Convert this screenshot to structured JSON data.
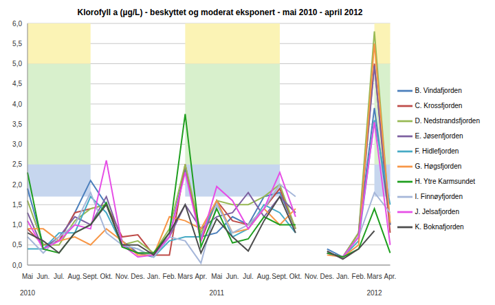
{
  "chart_data": {
    "type": "line",
    "title": "Klorofyll a (µg/L) - beskyttet og moderat eksponert - mai 2010 - april 2012",
    "categories": [
      "Mai",
      "Jun.",
      "Jul.",
      "Aug.",
      "Sept.",
      "Okt.",
      "Nov.",
      "Des.",
      "Jan.",
      "Feb.",
      "Mars",
      "Apr.",
      "Mai",
      "Jun.",
      "Jul.",
      "Aug.",
      "Sept.",
      "Okt.",
      "Nov.",
      "Des.",
      "Jan.",
      "Feb.",
      "Mars",
      "Apr."
    ],
    "year_labels": [
      {
        "text": "2010",
        "at": 0
      },
      {
        "text": "2011",
        "at": 12
      },
      {
        "text": "2012",
        "at": 22
      }
    ],
    "series": [
      {
        "name": "B. Vindafjorden",
        "color": "#4a7ebb",
        "values": [
          1.9,
          0.5,
          0.6,
          1.3,
          2.1,
          1.5,
          0.5,
          0.3,
          0.2,
          0.7,
          2.4,
          0.7,
          0.8,
          1.2,
          1.0,
          1.7,
          1.8,
          0.9,
          null,
          0.4,
          0.2,
          0.8,
          3.9,
          1.0
        ]
      },
      {
        "name": "C. Krossfjorden",
        "color": "#be4b48",
        "values": [
          0.9,
          0.5,
          0.6,
          1.3,
          1.4,
          1.5,
          0.7,
          0.75,
          0.25,
          0.25,
          2.5,
          0.6,
          1.6,
          1.1,
          1.0,
          1.4,
          1.9,
          0.9,
          null,
          0.3,
          0.2,
          0.8,
          5.0,
          0.8
        ]
      },
      {
        "name": "D. Nedstrandsfjorden",
        "color": "#98b954",
        "values": [
          1.6,
          0.5,
          0.5,
          1.1,
          1.4,
          1.5,
          0.5,
          0.6,
          0.3,
          0.9,
          2.5,
          0.8,
          1.6,
          1.5,
          1.5,
          1.7,
          2.0,
          0.9,
          null,
          0.3,
          0.2,
          0.8,
          5.8,
          1.0
        ]
      },
      {
        "name": "E. Jøsenfjorden",
        "color": "#7d60a0",
        "values": [
          1.3,
          0.4,
          0.7,
          1.2,
          1.0,
          1.7,
          0.6,
          0.3,
          0.3,
          0.7,
          1.5,
          0.9,
          1.2,
          1.3,
          1.8,
          1.2,
          1.7,
          1.3,
          null,
          0.3,
          0.2,
          0.7,
          4.95,
          1.0
        ]
      },
      {
        "name": "F. Hidlefjorden",
        "color": "#46aac5",
        "values": [
          0.4,
          0.4,
          0.8,
          0.8,
          1.7,
          1.3,
          0.5,
          0.4,
          0.2,
          0.6,
          0.7,
          0.7,
          1.6,
          0.7,
          0.9,
          1.5,
          1.3,
          0.8,
          null,
          0.3,
          0.2,
          0.6,
          3.6,
          1.5
        ]
      },
      {
        "name": "G. Høgsfjorden",
        "color": "#f79646",
        "values": [
          0.9,
          0.9,
          0.6,
          0.7,
          0.5,
          0.9,
          0.6,
          0.25,
          0.25,
          1.2,
          1.1,
          0.9,
          1.6,
          0.8,
          0.9,
          1.4,
          1.0,
          1.4,
          null,
          0.25,
          0.2,
          0.5,
          5.5,
          1.05
        ]
      },
      {
        "name": "I. Finnøyfjorden",
        "color": "#a5b6d9",
        "values": [
          0.7,
          0.3,
          0.7,
          1.0,
          1.8,
          0.8,
          0.5,
          0.4,
          0.2,
          0.7,
          0.6,
          0.05,
          1.5,
          0.8,
          1.0,
          1.4,
          2.0,
          1.7,
          null,
          0.3,
          0.2,
          0.7,
          1.8,
          1.3
        ]
      },
      {
        "name": "J. Jelsafjorden",
        "color": "#e64ee6",
        "values": [
          1.1,
          0.4,
          0.6,
          1.0,
          0.9,
          2.6,
          0.5,
          0.2,
          0.25,
          0.7,
          2.3,
          0.6,
          1.95,
          1.6,
          0.9,
          1.4,
          2.3,
          1.2,
          null,
          0.3,
          0.2,
          0.7,
          3.55,
          0.5
        ]
      },
      {
        "name": "H. Ytre Karmsundet",
        "color": "#1e9e1e",
        "values": [
          2.3,
          0.4,
          0.3,
          0.8,
          1.0,
          1.55,
          0.45,
          0.3,
          0.3,
          0.8,
          3.75,
          0.45,
          1.4,
          0.55,
          0.65,
          1.2,
          1.0,
          1.0,
          null,
          0.3,
          0.2,
          0.4,
          1.4,
          0.3
        ]
      },
      {
        "name": "K. Boknafjorden",
        "color": "#4d4d4d",
        "values": [
          0.8,
          0.6,
          0.3,
          0.8,
          1.0,
          1.5,
          0.5,
          0.5,
          0.25,
          0.8,
          1.5,
          0.3,
          1.15,
          0.7,
          0.35,
          1.1,
          1.7,
          0.8,
          null,
          0.35,
          0.15,
          0.4,
          0.85,
          null
        ]
      }
    ],
    "bands": {
      "x_ranges": [
        [
          0,
          4
        ],
        [
          10,
          16
        ],
        [
          22,
          23
        ]
      ],
      "classes": [
        {
          "y": [
            1.7,
            2.5
          ],
          "color": "#c6d6ee"
        },
        {
          "y": [
            2.5,
            5.0
          ],
          "color": "#d8f0cc"
        },
        {
          "y": [
            5.0,
            6.0
          ],
          "color": "#fbf3b5"
        }
      ]
    },
    "ylim": [
      0,
      6
    ],
    "yticks": [
      {
        "value": 0,
        "label": "0,0"
      },
      {
        "value": 0.5,
        "label": "0,5"
      },
      {
        "value": 1,
        "label": "1,0"
      },
      {
        "value": 1.5,
        "label": "1,5"
      },
      {
        "value": 2,
        "label": "2,0"
      },
      {
        "value": 2.5,
        "label": "2,5"
      },
      {
        "value": 3,
        "label": "3,0"
      },
      {
        "value": 3.5,
        "label": "3,5"
      },
      {
        "value": 4,
        "label": "4,0"
      },
      {
        "value": 4.5,
        "label": "4,5"
      },
      {
        "value": 5,
        "label": "5,0"
      },
      {
        "value": 5.5,
        "label": "5,5"
      },
      {
        "value": 6,
        "label": "6,0"
      }
    ],
    "grid": true,
    "legend": "right"
  }
}
